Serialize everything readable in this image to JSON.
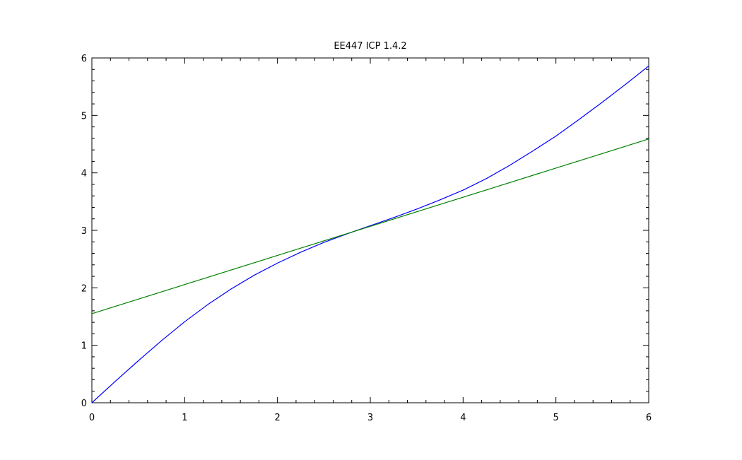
{
  "chart_data": {
    "type": "line",
    "title": "EE447 ICP 1.4.2",
    "xlabel": "",
    "ylabel": "",
    "xlim": [
      0,
      6
    ],
    "ylim": [
      0,
      6
    ],
    "xticks": [
      0,
      1,
      2,
      3,
      4,
      5,
      6
    ],
    "yticks": [
      0,
      1,
      2,
      3,
      4,
      5,
      6
    ],
    "grid": false,
    "series": [
      {
        "color": "#0000ff",
        "x": [
          0,
          0.25,
          0.5,
          0.75,
          1,
          1.25,
          1.5,
          1.75,
          2,
          2.25,
          2.5,
          2.75,
          3,
          3.25,
          3.5,
          3.75,
          4,
          4.25,
          4.5,
          4.75,
          5,
          5.25,
          5.5,
          5.75,
          6
        ],
        "y": [
          0,
          0.37,
          0.73,
          1.08,
          1.41,
          1.71,
          1.98,
          2.22,
          2.43,
          2.62,
          2.79,
          2.94,
          3.08,
          3.22,
          3.37,
          3.53,
          3.7,
          3.9,
          4.13,
          4.38,
          4.64,
          4.93,
          5.23,
          5.54,
          5.86
        ]
      },
      {
        "color": "#008000",
        "x": [
          0,
          6
        ],
        "y": [
          1.55,
          4.59
        ]
      }
    ]
  }
}
